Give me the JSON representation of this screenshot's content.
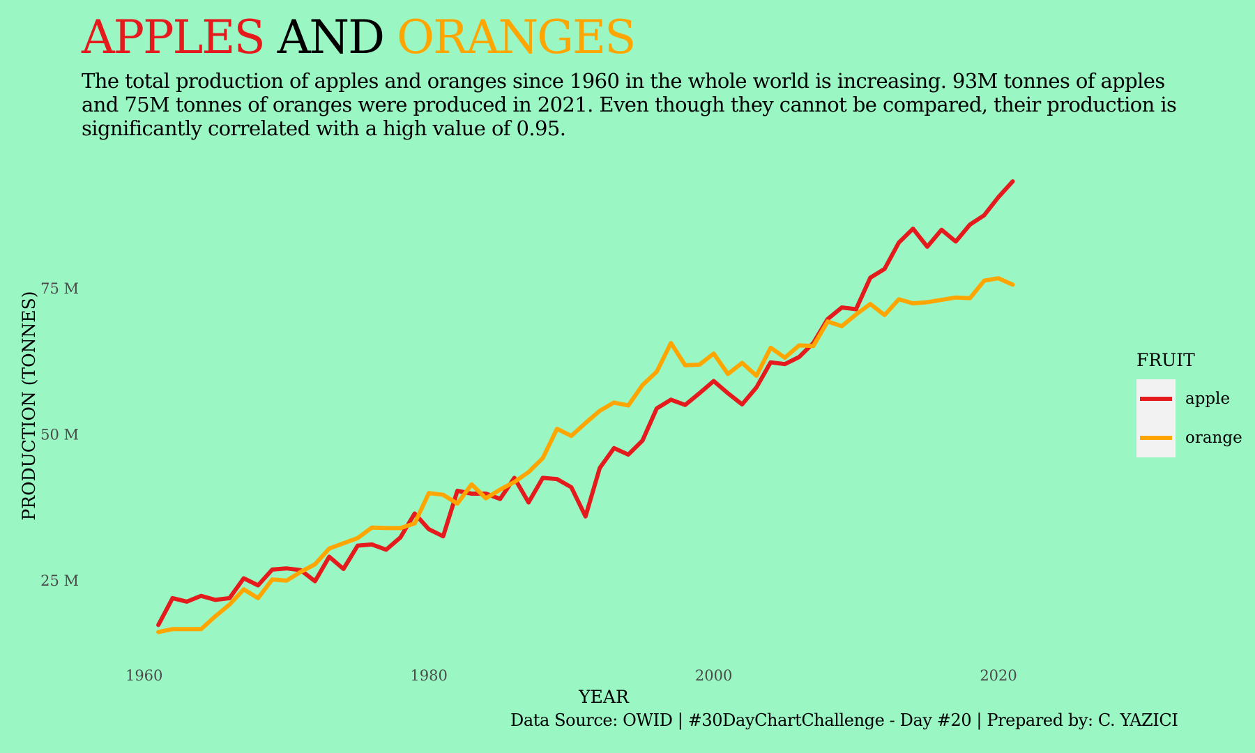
{
  "header": {
    "title_parts": [
      {
        "text": "APPLES",
        "color": "#e41a1c"
      },
      {
        "text": "AND",
        "color": "#000000"
      },
      {
        "text": "ORANGES",
        "color": "#ffa500"
      }
    ],
    "subtitle": "The total production of apples and oranges since 1960 in the whole world is increasing. 93M tonnes of apples and 75M tonnes of oranges were produced in 2021. Even though they cannot be compared, their production is significantly correlated with a high value of 0.95."
  },
  "caption": "Data Source: OWID | #30DayChartChallenge - Day #20 | Prepared by: C. YAZICI",
  "chart_data": {
    "type": "line",
    "xlabel": "YEAR",
    "ylabel": "PRODUCTION (TONNES)",
    "xlim": [
      1956,
      2027
    ],
    "ylim": [
      11000000,
      97000000
    ],
    "x_ticks": [
      1960,
      1980,
      2000,
      2020
    ],
    "x_tick_labels": [
      "1960",
      "1980",
      "2000",
      "2020"
    ],
    "y_ticks": [
      25000000,
      50000000,
      75000000
    ],
    "y_tick_labels": [
      "25 M",
      "50 M",
      "75 M"
    ],
    "grid": false,
    "legend": {
      "title": "FRUIT",
      "position": "right"
    },
    "x": [
      1961,
      1962,
      1963,
      1964,
      1965,
      1966,
      1967,
      1968,
      1969,
      1970,
      1971,
      1972,
      1973,
      1974,
      1975,
      1976,
      1977,
      1978,
      1979,
      1980,
      1981,
      1982,
      1983,
      1984,
      1985,
      1986,
      1987,
      1988,
      1989,
      1990,
      1991,
      1992,
      1993,
      1994,
      1995,
      1996,
      1997,
      1998,
      1999,
      2000,
      2001,
      2002,
      2003,
      2004,
      2005,
      2006,
      2007,
      2008,
      2009,
      2010,
      2011,
      2012,
      2013,
      2014,
      2015,
      2016,
      2017,
      2018,
      2019,
      2020,
      2021
    ],
    "series": [
      {
        "name": "apple",
        "color": "#e41a1c",
        "values": [
          17.4,
          22.0,
          21.4,
          22.4,
          21.7,
          22.0,
          25.4,
          24.2,
          26.9,
          27.1,
          26.8,
          24.9,
          29.1,
          27.0,
          31.0,
          31.2,
          30.3,
          32.4,
          36.5,
          33.8,
          32.6,
          40.4,
          39.9,
          39.9,
          39.0,
          42.6,
          38.4,
          42.6,
          42.4,
          41.0,
          36.0,
          44.3,
          47.7,
          46.6,
          49.0,
          54.5,
          56.0,
          55.1,
          57.1,
          59.2,
          57.1,
          55.2,
          58.1,
          62.4,
          62.1,
          63.3,
          65.7,
          69.8,
          71.8,
          71.5,
          76.9,
          78.4,
          82.9,
          85.3,
          82.2,
          85.1,
          83.1,
          86.0,
          87.6,
          90.7,
          93.4
        ]
      },
      {
        "name": "orange",
        "color": "#ffa500",
        "values": [
          16.2,
          16.7,
          16.7,
          16.7,
          18.9,
          20.9,
          23.5,
          22.0,
          25.2,
          25.0,
          26.5,
          27.8,
          30.5,
          31.4,
          32.3,
          34.1,
          34.0,
          34.0,
          34.8,
          40.0,
          39.7,
          38.2,
          41.5,
          39.1,
          40.6,
          41.9,
          43.6,
          46.0,
          51.0,
          49.8,
          52.0,
          54.1,
          55.5,
          55.0,
          58.5,
          60.8,
          65.7,
          61.9,
          62.0,
          63.9,
          60.4,
          62.3,
          60.1,
          64.9,
          63.2,
          65.3,
          65.2,
          69.4,
          68.6,
          70.6,
          72.4,
          70.5,
          73.2,
          72.5,
          72.7,
          73.1,
          73.5,
          73.4,
          76.4,
          76.8,
          75.7
        ]
      }
    ],
    "units": "million tonnes"
  }
}
